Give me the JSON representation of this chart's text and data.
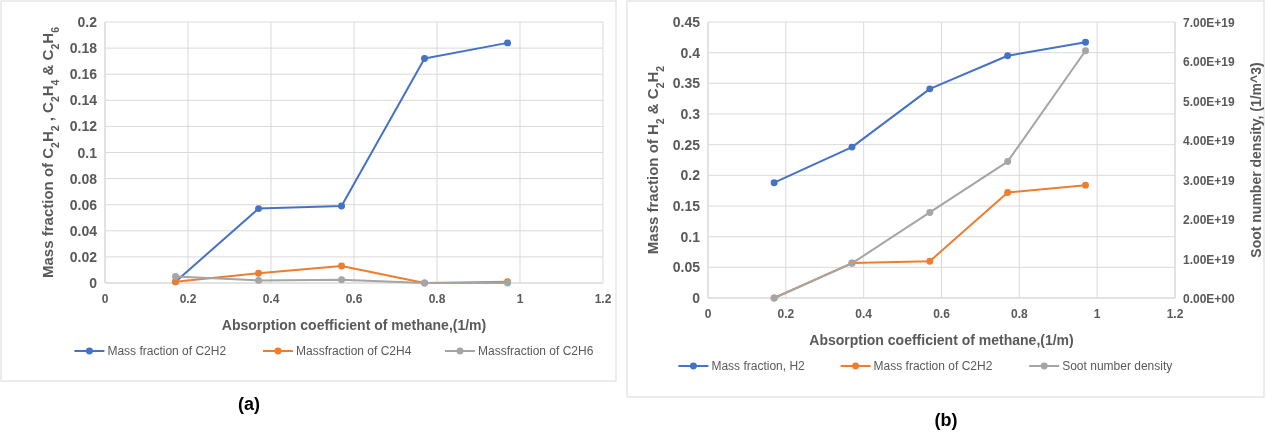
{
  "chart_data": [
    {
      "type": "line",
      "xlabel": "Absorption coefficient of methane,(1/m)",
      "ylabel": "Mass fraction of  C$_{2}$H$_{2}$ , C$_{2}$H$_{4}$ & C$_{2}$H$_{6}$",
      "annotations": [
        "(a)"
      ],
      "x": [
        0.17,
        0.37,
        0.57,
        0.77,
        0.97
      ],
      "xlim": [
        0,
        1.2
      ],
      "xticks": [
        0,
        0.2,
        0.4,
        0.6,
        0.8,
        1,
        1.2
      ],
      "ylim": [
        0,
        0.2
      ],
      "yticks": [
        0,
        0.02,
        0.04,
        0.06,
        0.08,
        0.1,
        0.12,
        0.14,
        0.16,
        0.18,
        0.2
      ],
      "grid": true,
      "legend": "bottom",
      "marker": "circle",
      "series": [
        {
          "name": "Mass fraction of C2H2",
          "color": "#4472c4",
          "values": [
            0.001,
            0.057,
            0.059,
            0.172,
            0.184
          ]
        },
        {
          "name": "Massfraction of C2H4",
          "color": "#ed7d31",
          "values": [
            0.001,
            0.0075,
            0.013,
            0,
            0.001
          ]
        },
        {
          "name": "Massfraction of  C2H6",
          "color": "#a5a5a5",
          "values": [
            0.005,
            0.002,
            0.0025,
            0,
            0
          ]
        }
      ]
    },
    {
      "type": "line",
      "xlabel": "Absorption coefficient of methane,(1/m)",
      "ylabel": "Mass fraction of H$_{2}$ & C$_{2}$H$_{2}$",
      "y2label": "Soot number density, (1/m^3)",
      "annotations": [
        "(b)"
      ],
      "x": [
        0.17,
        0.37,
        0.57,
        0.77,
        0.97
      ],
      "xlim": [
        0,
        1.2
      ],
      "xticks": [
        0,
        0.2,
        0.4,
        0.6,
        0.8,
        1,
        1.2
      ],
      "ylim": [
        0,
        0.45
      ],
      "yticks": [
        0,
        0.05,
        0.1,
        0.15,
        0.2,
        0.25,
        0.3,
        0.35,
        0.4,
        0.45
      ],
      "y2lim": [
        0,
        7e+19
      ],
      "y2ticks": [
        {
          "value": 0,
          "label": "0.00E+00"
        },
        {
          "value": 1e+19,
          "label": "1.00E+19"
        },
        {
          "value": 2e+19,
          "label": "2.00E+19"
        },
        {
          "value": 3e+19,
          "label": "3.00E+19"
        },
        {
          "value": 4e+19,
          "label": "4.00E+19"
        },
        {
          "value": 5e+19,
          "label": "5.00E+19"
        },
        {
          "value": 6e+19,
          "label": "6.00E+19"
        },
        {
          "value": 7e+19,
          "label": "7.00E+19"
        }
      ],
      "grid": true,
      "legend": "bottom",
      "marker": "circle",
      "series": [
        {
          "name": "Mass fraction, H2",
          "color": "#4472c4",
          "values": [
            0.188,
            0.246,
            0.341,
            0.395,
            0.417
          ]
        },
        {
          "name": "Mass fraction of C2H2",
          "color": "#ed7d31",
          "values": [
            0,
            0.057,
            0.06,
            0.172,
            0.184
          ]
        },
        {
          "name": "Soot number density",
          "color": "#a5a5a5",
          "axis": "y2",
          "values": [
            0,
            8.8e+18,
            2.17e+19,
            3.46e+19,
            6.27e+19
          ]
        }
      ]
    }
  ]
}
